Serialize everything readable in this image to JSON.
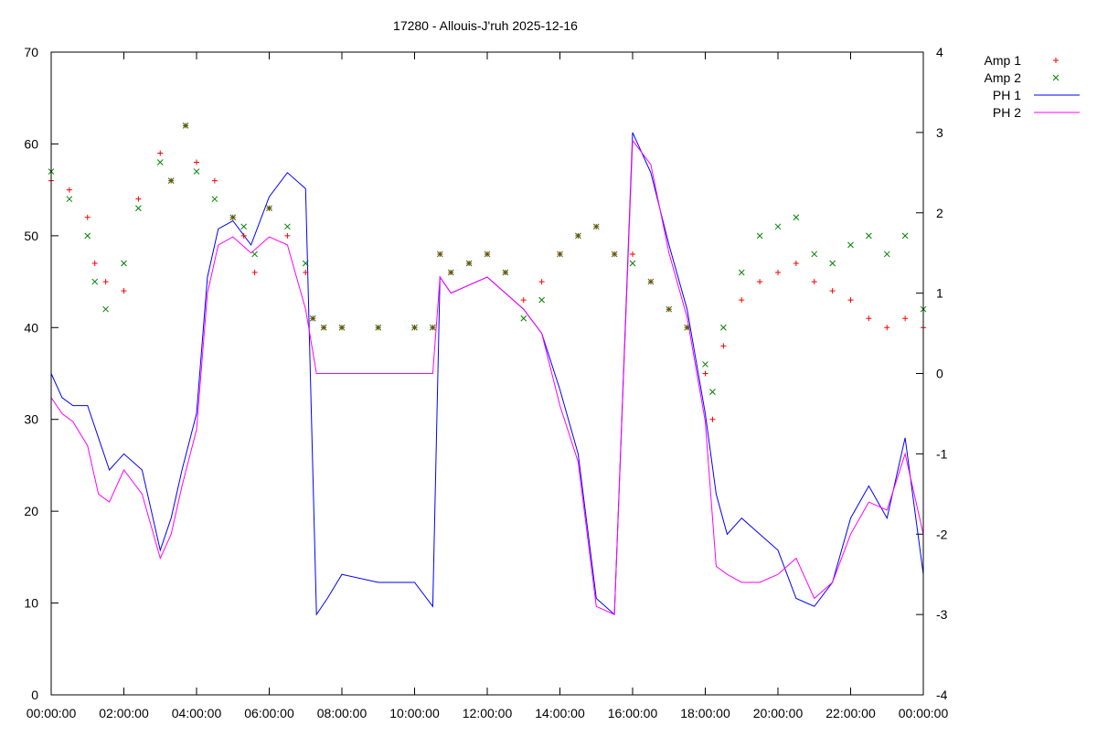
{
  "chart_data": {
    "type": "line",
    "title": "17280 - Allouis-J'ruh 2025-12-16",
    "x_ticks": [
      "00:00:00",
      "02:00:00",
      "04:00:00",
      "06:00:00",
      "08:00:00",
      "10:00:00",
      "12:00:00",
      "14:00:00",
      "16:00:00",
      "18:00:00",
      "20:00:00",
      "22:00:00",
      "00:00:00"
    ],
    "xlim_hours": [
      0,
      24
    ],
    "ylim_left": [
      0,
      70
    ],
    "y_ticks_left": [
      "0",
      "10",
      "20",
      "30",
      "40",
      "50",
      "60",
      "70"
    ],
    "ylim_right": [
      -4,
      4
    ],
    "y_ticks_right": [
      "-4",
      "-3",
      "-2",
      "-1",
      "0",
      "1",
      "2",
      "3",
      "4"
    ],
    "legend_position": "top-right outside plot",
    "series": [
      {
        "name": "Amp 1",
        "axis": "left",
        "style": "points",
        "marker": "+",
        "color": "#ff0000",
        "x": [
          0,
          0.5,
          1,
          1.2,
          1.5,
          2,
          2.4,
          3,
          3.3,
          3.7,
          4,
          4.5,
          5,
          5.3,
          5.6,
          6,
          6.5,
          7,
          7.2,
          7.5,
          8,
          9,
          10,
          10.5,
          10.7,
          11,
          11.5,
          12,
          12.5,
          13,
          13.5,
          14,
          14.5,
          15,
          15.5,
          16,
          16.5,
          17,
          17.5,
          18,
          18.2,
          18.5,
          19,
          19.5,
          20,
          20.5,
          21,
          21.5,
          22,
          22.5,
          23,
          23.5,
          24
        ],
        "y": [
          56,
          55,
          52,
          47,
          45,
          44,
          54,
          59,
          56,
          62,
          58,
          56,
          52,
          50,
          46,
          53,
          50,
          46,
          41,
          40,
          40,
          40,
          40,
          40,
          48,
          46,
          47,
          48,
          46,
          43,
          45,
          48,
          50,
          51,
          48,
          48,
          45,
          42,
          40,
          35,
          30,
          38,
          43,
          45,
          46,
          47,
          45,
          44,
          43,
          41,
          40,
          41,
          40
        ]
      },
      {
        "name": "Amp 2",
        "axis": "left",
        "style": "points",
        "marker": "x",
        "color": "#008000",
        "x": [
          0,
          0.5,
          1,
          1.2,
          1.5,
          2,
          2.4,
          3,
          3.3,
          3.7,
          4,
          4.5,
          5,
          5.3,
          5.6,
          6,
          6.5,
          7,
          7.2,
          7.5,
          8,
          9,
          10,
          10.5,
          10.7,
          11,
          11.5,
          12,
          12.5,
          13,
          13.5,
          14,
          14.5,
          15,
          15.5,
          16,
          16.5,
          17,
          17.5,
          18,
          18.2,
          18.5,
          19,
          19.5,
          20,
          20.5,
          21,
          21.5,
          22,
          22.5,
          23,
          23.5,
          24
        ],
        "y": [
          57,
          54,
          50,
          45,
          42,
          47,
          53,
          58,
          56,
          62,
          57,
          54,
          52,
          51,
          48,
          53,
          51,
          47,
          41,
          40,
          40,
          40,
          40,
          40,
          48,
          46,
          47,
          48,
          46,
          41,
          43,
          48,
          50,
          51,
          48,
          47,
          45,
          42,
          40,
          36,
          33,
          40,
          46,
          50,
          51,
          52,
          48,
          47,
          49,
          50,
          48,
          50,
          42
        ]
      },
      {
        "name": "PH 1",
        "axis": "right",
        "style": "line",
        "color": "#0000ff",
        "x": [
          0,
          0.3,
          0.6,
          1,
          1.3,
          1.6,
          2,
          2.5,
          3,
          3.3,
          3.6,
          4,
          4.3,
          4.6,
          5,
          5.5,
          6,
          6.5,
          7,
          7.3,
          7.6,
          8,
          9,
          10,
          10.5,
          10.7,
          11,
          11.5,
          12,
          12.5,
          13,
          13.5,
          14,
          14.5,
          15,
          15.5,
          16,
          16.5,
          17,
          17.5,
          18,
          18.3,
          18.6,
          19,
          19.5,
          20,
          20.5,
          21,
          21.5,
          22,
          22.5,
          23,
          23.5,
          24
        ],
        "y": [
          0,
          -0.3,
          -0.4,
          -0.4,
          -0.8,
          -1.2,
          -1.0,
          -1.2,
          -2.2,
          -1.8,
          -1.2,
          -0.5,
          1.2,
          1.8,
          1.9,
          1.6,
          2.2,
          2.5,
          2.3,
          -3,
          -2.8,
          -2.5,
          -2.6,
          -2.6,
          -2.9,
          1.2,
          1.0,
          1.1,
          1.2,
          1.0,
          0.8,
          0.5,
          -0.2,
          -1.0,
          -2.8,
          -3.0,
          3.0,
          2.5,
          1.6,
          0.8,
          -0.5,
          -1.5,
          -2.0,
          -1.8,
          -2.0,
          -2.2,
          -2.8,
          -2.9,
          -2.6,
          -1.8,
          -1.4,
          -1.8,
          -0.8,
          -2.5
        ]
      },
      {
        "name": "PH 2",
        "axis": "right",
        "style": "line",
        "color": "#ff00ff",
        "x": [
          0,
          0.3,
          0.6,
          1,
          1.3,
          1.6,
          2,
          2.5,
          3,
          3.3,
          3.6,
          4,
          4.3,
          4.6,
          5,
          5.5,
          6,
          6.5,
          7,
          7.3,
          7.6,
          8,
          9,
          10,
          10.5,
          10.7,
          11,
          11.5,
          12,
          12.5,
          13,
          13.5,
          14,
          14.5,
          15,
          15.5,
          16,
          16.5,
          17,
          17.5,
          18,
          18.3,
          18.6,
          19,
          19.5,
          20,
          20.5,
          21,
          21.5,
          22,
          22.5,
          23,
          23.5,
          24
        ],
        "y": [
          -0.3,
          -0.5,
          -0.6,
          -0.9,
          -1.5,
          -1.6,
          -1.2,
          -1.5,
          -2.3,
          -2.0,
          -1.4,
          -0.7,
          1.0,
          1.6,
          1.7,
          1.5,
          1.7,
          1.6,
          0.8,
          0.0,
          0.0,
          0.0,
          0.0,
          0.0,
          0.0,
          1.2,
          1.0,
          1.1,
          1.2,
          1.0,
          0.8,
          0.5,
          -0.4,
          -1.1,
          -2.9,
          -3.0,
          2.9,
          2.6,
          1.5,
          0.7,
          -0.6,
          -2.4,
          -2.5,
          -2.6,
          -2.6,
          -2.5,
          -2.3,
          -2.8,
          -2.6,
          -2.0,
          -1.6,
          -1.7,
          -1.0,
          -2.0
        ]
      }
    ]
  }
}
